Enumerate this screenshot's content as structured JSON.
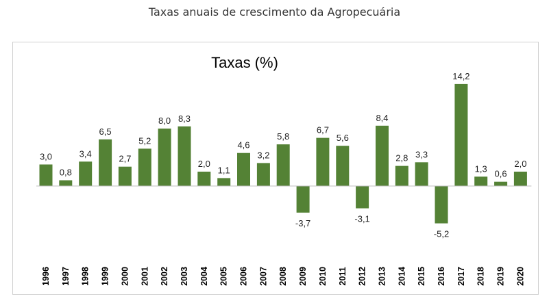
{
  "header": {
    "title": "Taxas anuais de crescimento da Agropecuária"
  },
  "colors": {
    "bar": "#548235",
    "axis": "#bfbfbf"
  },
  "chart_data": {
    "type": "bar",
    "title": "Taxas (%)",
    "xlabel": "",
    "ylabel": "",
    "grid": false,
    "legend": "none",
    "categories": [
      "1996",
      "1997",
      "1998",
      "1999",
      "2000",
      "2001",
      "2002",
      "2003",
      "2004",
      "2005",
      "2006",
      "2007",
      "2008",
      "2009",
      "2010",
      "2011",
      "2012",
      "2013",
      "2014",
      "2015",
      "2016",
      "2017",
      "2018",
      "2019",
      "2020"
    ],
    "values": [
      3.0,
      0.8,
      3.4,
      6.5,
      2.7,
      5.2,
      8.0,
      8.3,
      2.0,
      1.1,
      4.6,
      3.2,
      5.8,
      -3.7,
      6.7,
      5.6,
      -3.1,
      8.4,
      2.8,
      3.3,
      -5.2,
      14.2,
      1.3,
      0.6,
      2.0
    ],
    "value_labels": [
      "3,0",
      "0,8",
      "3,4",
      "6,5",
      "2,7",
      "5,2",
      "8,0",
      "8,3",
      "2,0",
      "1,1",
      "4,6",
      "3,2",
      "5,8",
      "-3,7",
      "6,7",
      "5,6",
      "-3,1",
      "8,4",
      "2,8",
      "3,3",
      "-5,2",
      "14,2",
      "1,3",
      "0,6",
      "2,0"
    ],
    "ylim": [
      -5.2,
      14.2
    ]
  }
}
